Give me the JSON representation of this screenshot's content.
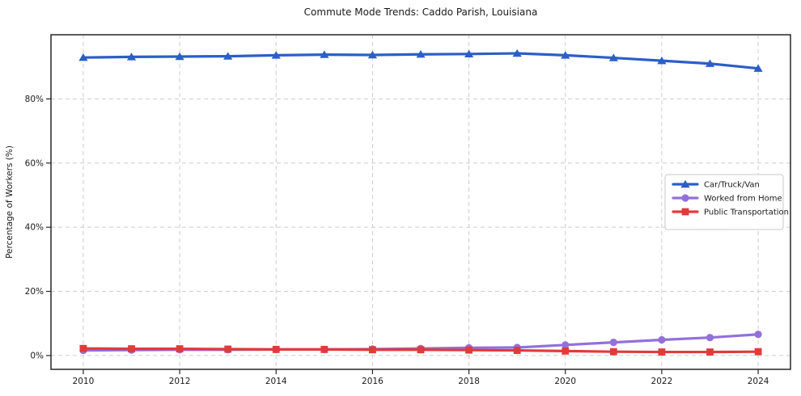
{
  "chart_data": {
    "type": "line",
    "title": "Commute Mode Trends: Caddo Parish, Louisiana",
    "xlabel": "",
    "ylabel": "Percentage of Workers (%)",
    "x": [
      2010,
      2011,
      2012,
      2013,
      2014,
      2015,
      2016,
      2017,
      2018,
      2019,
      2020,
      2021,
      2022,
      2023,
      2024
    ],
    "xticks": [
      2010,
      2012,
      2014,
      2016,
      2018,
      2020,
      2022,
      2024
    ],
    "xtick_labels": [
      "2010",
      "2012",
      "2014",
      "2016",
      "2018",
      "2020",
      "2022",
      "2024"
    ],
    "yticks": [
      0,
      20,
      40,
      60,
      80
    ],
    "ytick_labels": [
      "0%",
      "20%",
      "40%",
      "60%",
      "80%"
    ],
    "xlim": [
      2009.33,
      2024.67
    ],
    "ylim": [
      -4.3,
      100.0
    ],
    "grid": true,
    "grid_color": "#cccccc",
    "legend_position": "center-right",
    "series": [
      {
        "name": "Car/Truck/Van",
        "color": "#2b5fc7",
        "marker": "triangle",
        "values": [
          92.9,
          93.1,
          93.2,
          93.3,
          93.6,
          93.8,
          93.7,
          93.9,
          94.0,
          94.2,
          93.6,
          92.8,
          91.9,
          91.0,
          89.5
        ]
      },
      {
        "name": "Worked from Home",
        "color": "#9370db",
        "marker": "circle",
        "values": [
          1.6,
          1.7,
          1.8,
          1.8,
          1.9,
          1.9,
          2.0,
          2.2,
          2.4,
          2.5,
          3.3,
          4.1,
          4.9,
          5.6,
          6.6
        ]
      },
      {
        "name": "Public Transportation",
        "color": "#e03b3b",
        "marker": "square",
        "values": [
          2.2,
          2.1,
          2.1,
          2.0,
          1.9,
          1.9,
          1.8,
          1.8,
          1.7,
          1.6,
          1.4,
          1.2,
          1.1,
          1.1,
          1.2
        ]
      }
    ]
  }
}
